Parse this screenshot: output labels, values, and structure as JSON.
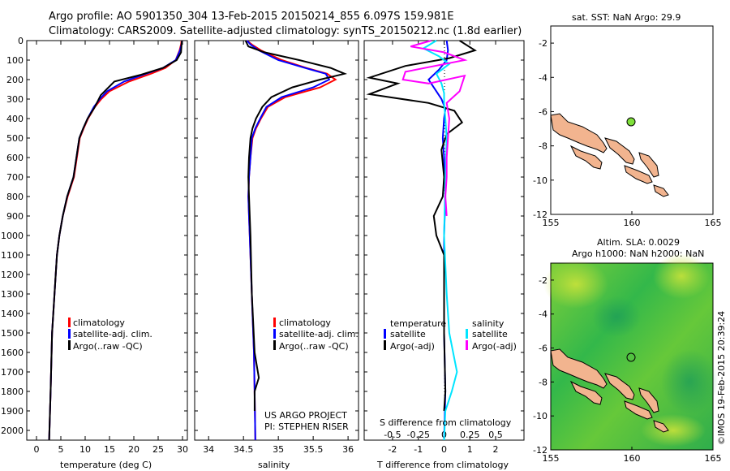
{
  "header": {
    "line1": "Argo profile: AO 5901350_304 13-Feb-2015 20150214_855 6.097S 159.981E",
    "line2": "Climatology: CARS2009. Satellite-adjusted climatology: synTS_20150212.nc (1.8d earlier)"
  },
  "depth_ticks": [
    0,
    100,
    200,
    300,
    400,
    500,
    600,
    700,
    800,
    900,
    1000,
    1100,
    1200,
    1300,
    1400,
    1500,
    1600,
    1700,
    1800,
    1900,
    2000
  ],
  "colors": {
    "climatology": "#ff0000",
    "satellite": "#0000ff",
    "argo": "#000000",
    "argo_sal": "#ff00ff",
    "sat_sal": "#00e5ff",
    "float_dot": "#7fe03a"
  },
  "chart_data": [
    {
      "type": "line",
      "panel": "temperature",
      "xlabel": "temperature (deg C)",
      "xticks": [
        0,
        5,
        10,
        15,
        20,
        25,
        30
      ],
      "xlim": [
        -2,
        31
      ],
      "ylim": [
        2050,
        0
      ],
      "legend": [
        "climatology",
        "satellite-adj. clim.",
        "Argo(..raw -QC)"
      ],
      "series": [
        {
          "name": "climatology",
          "color": "red",
          "x": [
            29.8,
            29.7,
            29.4,
            28.6,
            26.5,
            23.5,
            19,
            15,
            13.3,
            12,
            10.6,
            9.7,
            8.9,
            8.3,
            7.7,
            6.4,
            5.4,
            4.7,
            4.2,
            3.7,
            3.2,
            2.9,
            2.6
          ],
          "y": [
            0,
            20,
            50,
            100,
            140,
            170,
            210,
            260,
            300,
            340,
            400,
            450,
            500,
            600,
            700,
            800,
            900,
            1000,
            1100,
            1300,
            1500,
            1800,
            2050
          ]
        },
        {
          "name": "satellite-adj. clim.",
          "color": "blue",
          "x": [
            29.9,
            29.8,
            29.5,
            28.6,
            26,
            22.5,
            18,
            14.5,
            13,
            11.8,
            10.5,
            9.6,
            8.8,
            8.2,
            7.6,
            6.3,
            5.4,
            4.7,
            4.2,
            3.7,
            3.2,
            2.9,
            2.6
          ],
          "y": [
            0,
            20,
            50,
            100,
            140,
            170,
            210,
            260,
            300,
            340,
            400,
            450,
            500,
            600,
            700,
            800,
            900,
            1000,
            1100,
            1300,
            1500,
            1800,
            2050
          ]
        },
        {
          "name": "Argo(..raw -QC)",
          "color": "black",
          "x": [
            29.9,
            29.8,
            29.7,
            28.8,
            26,
            21.5,
            16,
            13.2,
            12,
            10.5,
            9.6,
            8.8,
            8.2,
            7.6,
            6.3,
            5.4,
            4.7,
            4.2,
            3.7,
            3.2,
            2.9,
            2.6
          ],
          "y": [
            0,
            20,
            60,
            100,
            140,
            175,
            210,
            280,
            340,
            400,
            450,
            500,
            600,
            700,
            800,
            900,
            1000,
            1100,
            1300,
            1500,
            1800,
            2050
          ]
        }
      ]
    },
    {
      "type": "line",
      "panel": "salinity",
      "xlabel": "salinity",
      "xticks": [
        34,
        34.5,
        35,
        35.5,
        36
      ],
      "xlim": [
        33.8,
        36.15
      ],
      "ylim": [
        2050,
        0
      ],
      "legend": [
        "climatology",
        "satellite-adj. clim.",
        "Argo(..raw -QC)"
      ],
      "footer": [
        "US ARGO PROJECT",
        "PI: STEPHEN RISER"
      ],
      "series": [
        {
          "name": "climatology",
          "color": "red",
          "x": [
            34.55,
            34.62,
            34.75,
            35.05,
            35.4,
            35.7,
            35.82,
            35.6,
            35.1,
            34.85,
            34.75,
            34.68,
            34.63,
            34.6,
            34.58,
            34.57,
            34.58,
            34.59,
            34.61,
            34.63,
            34.65,
            34.66,
            34.67
          ],
          "y": [
            0,
            20,
            50,
            100,
            140,
            170,
            200,
            240,
            290,
            340,
            400,
            450,
            500,
            600,
            700,
            800,
            900,
            1000,
            1200,
            1400,
            1600,
            1800,
            2050
          ]
        },
        {
          "name": "satellite-adj. clim.",
          "color": "blue",
          "x": [
            34.55,
            34.6,
            34.72,
            35.0,
            35.38,
            35.68,
            35.73,
            35.5,
            35.05,
            34.83,
            34.74,
            34.67,
            34.62,
            34.6,
            34.58,
            34.57,
            34.58,
            34.59,
            34.61,
            34.63,
            34.65,
            34.66,
            34.67
          ],
          "y": [
            0,
            20,
            50,
            100,
            140,
            170,
            200,
            240,
            290,
            340,
            400,
            450,
            500,
            600,
            700,
            800,
            900,
            1000,
            1200,
            1400,
            1600,
            1800,
            2050
          ]
        },
        {
          "name": "Argo(..raw -QC)",
          "color": "black",
          "x": [
            34.53,
            34.57,
            34.8,
            35.3,
            35.75,
            35.95,
            35.6,
            35.2,
            34.9,
            34.77,
            34.68,
            34.63,
            34.6,
            34.58,
            34.57,
            34.58,
            34.6,
            34.62,
            34.66,
            34.72,
            34.66,
            34.66
          ],
          "y": [
            0,
            30,
            60,
            100,
            140,
            170,
            200,
            240,
            290,
            340,
            400,
            450,
            500,
            600,
            700,
            800,
            1000,
            1300,
            1600,
            1730,
            1800,
            1900
          ]
        }
      ]
    },
    {
      "type": "line",
      "panel": "difference",
      "xlabel": "T difference from climatology",
      "xticks": [
        -2,
        -1,
        0,
        1,
        2
      ],
      "top_title": "S difference from climatology",
      "top_ticks": [
        "-0.5",
        "-0.25",
        "0",
        "0.25",
        "0.5"
      ],
      "xlim": [
        -3.1,
        3.1
      ],
      "ylim": [
        2050,
        0
      ],
      "legend": [
        "temperature",
        "satellite",
        "Argo(-adj)",
        "salinity",
        "satellite",
        "Argo(-adj)"
      ],
      "series": [
        {
          "name": "satellite",
          "color": "blue",
          "x": [
            0.1,
            0.15,
            0.1,
            -0.2,
            -0.6,
            -0.3,
            -0.1,
            0.05,
            0,
            -0.05,
            0,
            0.05,
            0,
            0,
            0,
            0.05,
            0
          ],
          "y": [
            0,
            50,
            100,
            150,
            200,
            260,
            300,
            350,
            400,
            500,
            600,
            800,
            1000,
            1200,
            1500,
            1800,
            2050
          ]
        },
        {
          "name": "Argo(-adj)",
          "color": "black",
          "x": [
            0.6,
            1.2,
            0.2,
            -1.5,
            -2.9,
            -1.8,
            -2.9,
            -0.6,
            0.4,
            0.7,
            0.1,
            -0.1,
            0,
            -0.05,
            -0.4,
            -0.3,
            0,
            0,
            0.05,
            0
          ],
          "y": [
            0,
            50,
            90,
            130,
            190,
            220,
            275,
            320,
            360,
            420,
            480,
            560,
            700,
            800,
            900,
            1000,
            1100,
            1500,
            1800,
            1900
          ]
        },
        {
          "name": "satellite",
          "color": "cyan",
          "x": [
            -0.3,
            -0.8,
            -0.2,
            0.2,
            -0.3,
            -0.1,
            0,
            0,
            0.05,
            0.1,
            0.05,
            0,
            0.1,
            0.2,
            0.5,
            0.3,
            0.05,
            0
          ],
          "y": [
            0,
            40,
            80,
            120,
            170,
            220,
            270,
            320,
            400,
            500,
            700,
            1000,
            1300,
            1500,
            1700,
            1800,
            1900,
            2050
          ]
        },
        {
          "name": "Argo(-adj)",
          "color": "magenta",
          "x": [
            -0.5,
            -1.3,
            0,
            0.8,
            -1.5,
            -1.6,
            -0.6,
            0.8,
            0.6,
            0.1,
            0.2,
            0.15,
            0.1,
            0.1,
            0.05,
            0.1
          ],
          "y": [
            0,
            30,
            60,
            100,
            160,
            200,
            220,
            180,
            260,
            320,
            400,
            500,
            600,
            700,
            800,
            900
          ]
        }
      ]
    },
    {
      "type": "map",
      "panel": "sst",
      "title": "sat. SST: NaN Argo: 29.9",
      "xticks": [
        "155",
        "160",
        "165"
      ],
      "yticks": [
        "-2",
        "-4",
        "-6",
        "-8",
        "-10",
        "-12"
      ]
    },
    {
      "type": "map",
      "panel": "sla",
      "title1": "Altim. SLA: 0.0029",
      "title2": "Argo h1000: NaN h2000: NaN",
      "xticks": [
        "155",
        "160",
        "165"
      ],
      "yticks": [
        "-2",
        "-4",
        "-6",
        "-8",
        "-10",
        "-12"
      ],
      "side_label": "©IMOS 19-Feb-2015 20:39:24"
    }
  ]
}
